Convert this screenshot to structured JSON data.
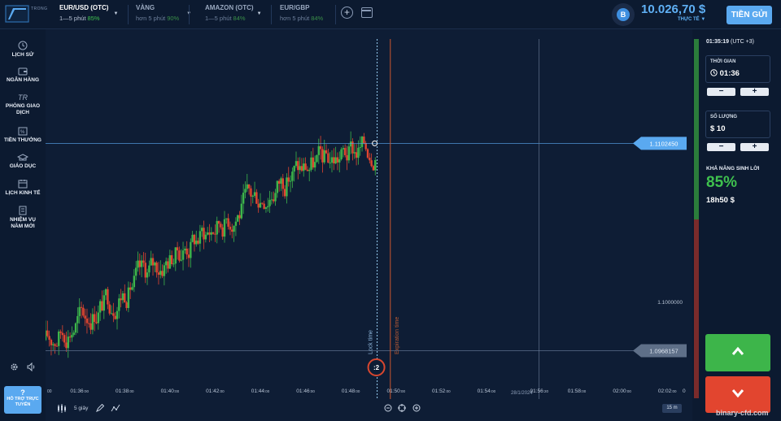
{
  "brand": {
    "logo_text": "TRONG"
  },
  "assets": [
    {
      "name": "EUR/USD (OTC)",
      "time": "1—5 phút",
      "percent": "85%",
      "active": true
    },
    {
      "name": "VÀNG",
      "time": "hơn 5 phút",
      "percent": "90%",
      "active": false
    },
    {
      "name": "AMAZON (OTC)",
      "time": "1—5 phút",
      "percent": "84%",
      "active": false
    },
    {
      "name": "EUR/GBP",
      "time": "hơn 5 phút",
      "percent": "84%",
      "active": false
    }
  ],
  "toolbar": {
    "add_asset_icon": "plus-circle-icon",
    "layout_icon": "layout-icon"
  },
  "account": {
    "avatar_letter": "B",
    "balance": "10.026,70 $",
    "type": "THỰC TẾ",
    "deposit_label": "TIỀN GỬI"
  },
  "sidebar": {
    "items": [
      {
        "label": "LỊCH SỬ",
        "icon": "clock-icon"
      },
      {
        "label": "NGÂN HÀNG",
        "icon": "wallet-icon"
      },
      {
        "label": "PHÒNG GIAO DỊCH",
        "icon": "trading-room-icon"
      },
      {
        "label": "TIỀN THƯỞNG",
        "icon": "percent-icon"
      },
      {
        "label": "GIÁO DỤC",
        "icon": "graduation-cap-icon"
      },
      {
        "label": "LỊCH KINH TẾ",
        "icon": "calendar-icon"
      },
      {
        "label": "NHIỆM VỤ NĂM MỚI",
        "icon": "scroll-icon"
      }
    ],
    "support": {
      "icon_text": "?",
      "label": "HỖ TRỢ TRỰC TUYẾN"
    }
  },
  "chart": {
    "time_labels": [
      "01:36:00",
      "01:38:00",
      "01:40:00",
      "01:42:00",
      "01:44:00",
      "01:46:00",
      "01:48:00",
      "01:50:00",
      "01:52:00",
      "01:54:00",
      "01:56:20",
      "01:58:00",
      "02:00:00",
      "02:02:00"
    ],
    "left_edge_label": "00",
    "date_label": "28/1/2024",
    "current_price_label": "1.1102450",
    "mid_price_label": "1.1000000",
    "low_price_label": "1.0968157",
    "lock_time_label": "Lock time",
    "expiration_label": "Expiration time",
    "timer_label": ":2",
    "right_edge_label": "0"
  },
  "chart_data": {
    "type": "candlestick",
    "x_range": [
      "01:34:30",
      "02:03:00"
    ],
    "y_range": [
      1.095,
      1.117
    ],
    "current_price": 1.110245,
    "reference_price": 1.1,
    "low_price": 1.0968157,
    "lock_time": "01:49:10",
    "expiration_time": "01:49:45",
    "marker_time": "01:56:20",
    "colors": {
      "up": "#3db54a",
      "down": "#e2452f",
      "current_line": "#5aa9f0"
    }
  },
  "bottom": {
    "timeframe": "5 giây",
    "period": "15 m"
  },
  "panel": {
    "clock": "01:35:19",
    "timezone": "(UTC +3)",
    "time_label": "THỜI GIAN",
    "time_value": "01:36",
    "amount_label": "SỐ LƯỢNG",
    "amount_value": "$ 10",
    "minus": "−",
    "plus": "+",
    "profit_label": "KHẢ NĂNG SINH LỜI",
    "profit_percent": "85%",
    "profit_amount": "18h50 $"
  },
  "watermark": "binary-cfd.com"
}
